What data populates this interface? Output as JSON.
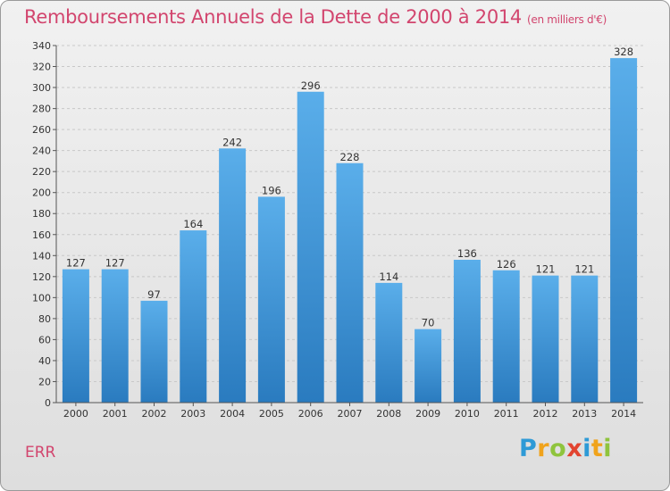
{
  "header": {
    "title": "Remboursements Annuels de la Dette de 2000 à 2014",
    "unit": "(en milliers d'€)"
  },
  "footer": {
    "commune": "ERR",
    "logo_letters": [
      "P",
      "r",
      "o",
      "x",
      "i",
      "t",
      "i"
    ]
  },
  "chart_data": {
    "type": "bar",
    "categories": [
      "2000",
      "2001",
      "2002",
      "2003",
      "2004",
      "2005",
      "2006",
      "2007",
      "2008",
      "2009",
      "2010",
      "2011",
      "2012",
      "2013",
      "2014"
    ],
    "values": [
      127,
      127,
      97,
      164,
      242,
      196,
      296,
      228,
      114,
      70,
      136,
      126,
      121,
      121,
      328
    ],
    "ylim": [
      0,
      340
    ],
    "yticks": [
      0,
      20,
      40,
      60,
      80,
      100,
      120,
      140,
      160,
      180,
      200,
      220,
      240,
      260,
      280,
      300,
      320,
      340
    ],
    "grid": true,
    "bar_color_top": "#5aaeea",
    "bar_color_bottom": "#2a7bbf"
  }
}
